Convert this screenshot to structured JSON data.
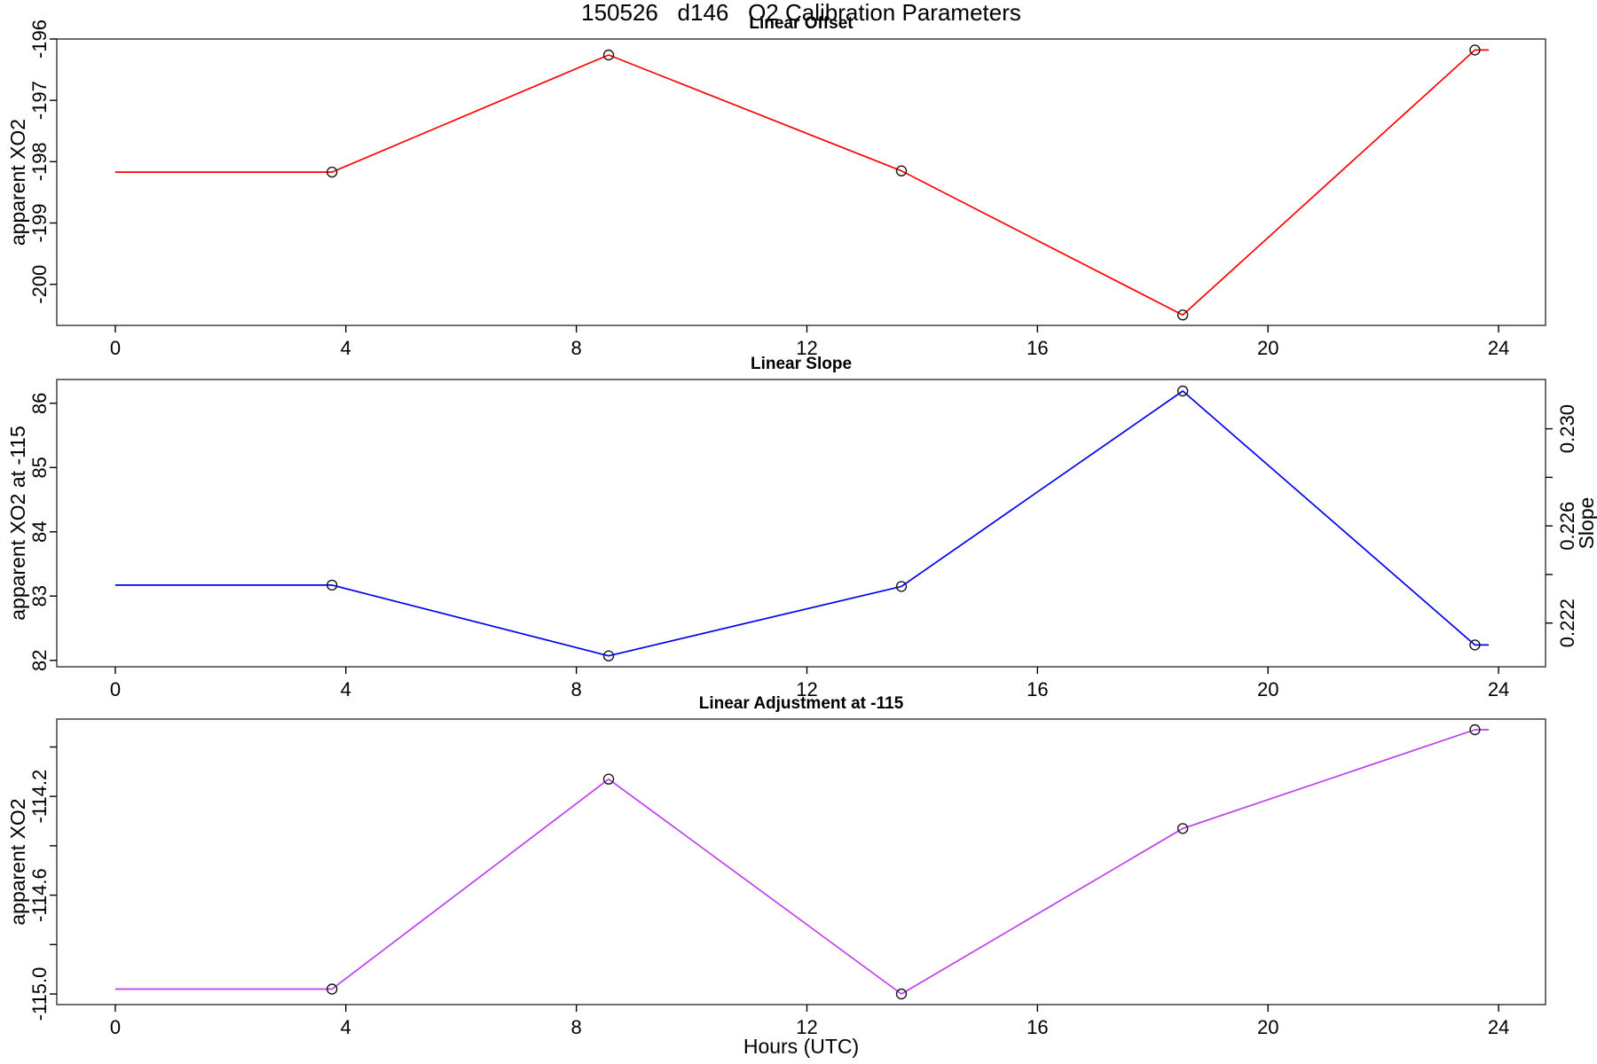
{
  "header": {
    "title": "150526   d146   O2 Calibration Parameters"
  },
  "x_axis": {
    "label": "Hours (UTC)",
    "ticks": [
      0,
      4,
      8,
      12,
      16,
      20,
      24
    ],
    "lim": [
      -1.015,
      24.815
    ]
  },
  "colors": {
    "offset_line": "#ff0000",
    "slope_line": "#0000ee",
    "adjustment_line": "#bf3fef",
    "marker": "#1a1a1a",
    "frame": "#4d4d4d"
  },
  "chart_data": [
    {
      "type": "line",
      "title": "Linear Offset",
      "ylabel": "apparent XO2",
      "color": "#ff0000",
      "ylim": [
        -200.67,
        -196.0
      ],
      "yticks": [
        {
          "v": -196,
          "label": "-196"
        },
        {
          "v": -197,
          "label": "-197"
        },
        {
          "v": -198,
          "label": "-198"
        },
        {
          "v": -199,
          "label": "-199"
        },
        {
          "v": -200,
          "label": "-200"
        }
      ],
      "points": {
        "x": [
          3.76,
          8.56,
          13.64,
          18.52,
          23.59
        ],
        "y": [
          -198.17,
          -196.26,
          -198.15,
          -200.5,
          -196.18
        ]
      },
      "line": {
        "x": [
          0,
          3.76,
          8.56,
          13.64,
          18.52,
          23.59,
          23.83
        ],
        "y": [
          -198.17,
          -198.17,
          -196.26,
          -198.15,
          -200.5,
          -196.18,
          -196.18
        ]
      }
    },
    {
      "type": "line",
      "title": "Linear Slope",
      "ylabel": "apparent XO2 at -115",
      "right_ylabel": "Slope",
      "color": "#0000ee",
      "ylim": [
        81.9,
        86.37
      ],
      "yticks": [
        {
          "v": 86,
          "label": "86"
        },
        {
          "v": 85,
          "label": "85"
        },
        {
          "v": 84,
          "label": "84"
        },
        {
          "v": 83,
          "label": "83"
        },
        {
          "v": 82,
          "label": "82"
        }
      ],
      "right_ylim": [
        0.2202,
        0.23203
      ],
      "right_yticks": [
        {
          "v": 0.23,
          "label": "0.230"
        },
        {
          "v": 0.228,
          "label": ""
        },
        {
          "v": 0.226,
          "label": "0.226"
        },
        {
          "v": 0.224,
          "label": ""
        },
        {
          "v": 0.222,
          "label": "0.222"
        }
      ],
      "points": {
        "x": [
          3.76,
          8.56,
          13.64,
          18.52,
          23.59
        ],
        "y": [
          83.17,
          82.07,
          83.15,
          86.19,
          82.24
        ]
      },
      "line": {
        "x": [
          0,
          3.76,
          8.56,
          13.64,
          18.52,
          23.59,
          23.83
        ],
        "y": [
          83.17,
          83.17,
          82.07,
          83.15,
          86.19,
          82.24,
          82.24
        ]
      }
    },
    {
      "type": "line",
      "title": "Linear Adjustment at -115",
      "ylabel": "apparent XO2",
      "color": "#bf3fef",
      "ylim": [
        -115.043,
        -113.887
      ],
      "yticks": [
        {
          "v": -114.0,
          "label": ""
        },
        {
          "v": -114.2,
          "label": "-114.2"
        },
        {
          "v": -114.4,
          "label": ""
        },
        {
          "v": -114.6,
          "label": "-114.6"
        },
        {
          "v": -114.8,
          "label": ""
        },
        {
          "v": -115.0,
          "label": "-115.0"
        }
      ],
      "points": {
        "x": [
          3.76,
          8.56,
          13.64,
          18.52,
          23.59
        ],
        "y": [
          -114.98,
          -114.13,
          -115.0,
          -114.33,
          -113.93
        ]
      },
      "line": {
        "x": [
          0,
          3.76,
          8.56,
          13.64,
          18.52,
          23.59,
          23.83
        ],
        "y": [
          -114.98,
          -114.98,
          -114.13,
          -115.0,
          -114.33,
          -113.93,
          -113.93
        ]
      }
    }
  ]
}
